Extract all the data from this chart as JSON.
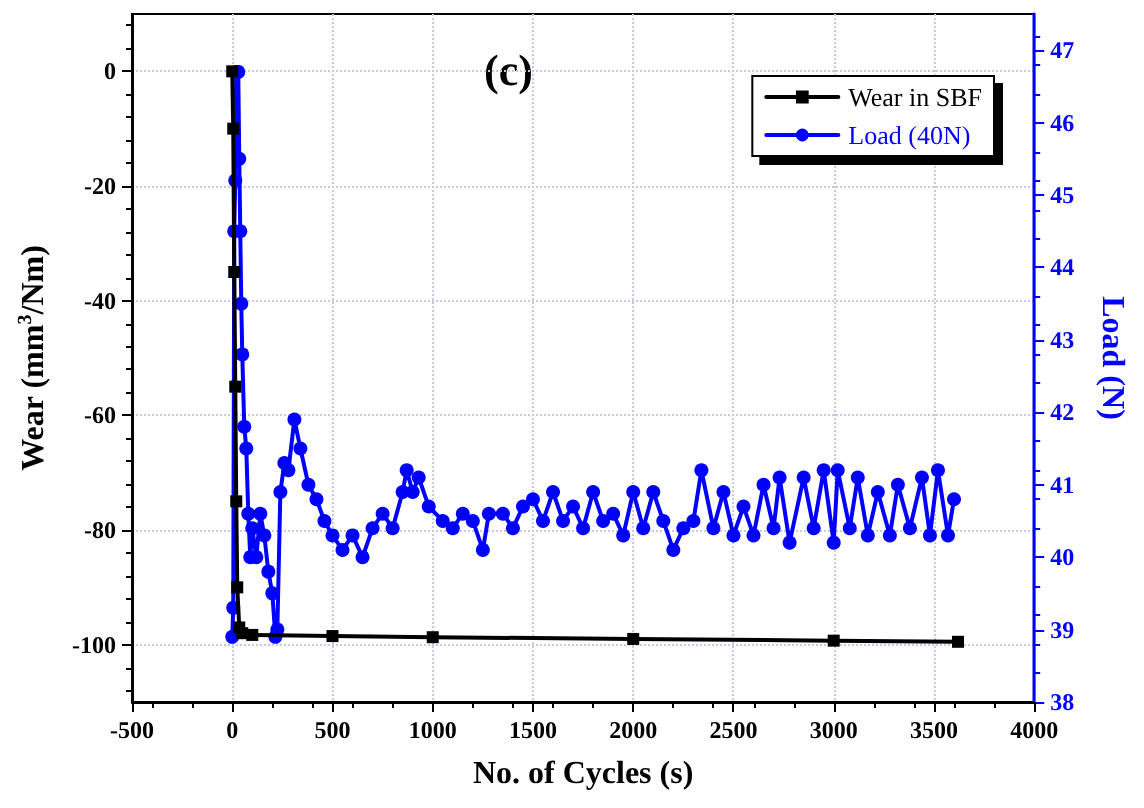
{
  "chart_data": {
    "type": "line",
    "xlabel": "No. of Cycles (s)",
    "ylabel": "Wear (mm$^{3}$/Nm)",
    "y2label": "Load (N)",
    "annotations": [
      "(c)"
    ],
    "xlim": [
      -500,
      4000
    ],
    "xticks": [
      -500,
      0,
      500,
      1000,
      1500,
      2000,
      2500,
      3000,
      3500,
      4000
    ],
    "ylim": [
      -110,
      10
    ],
    "yticks": [
      -100,
      -80,
      -60,
      -40,
      -20,
      0
    ],
    "y2lim": [
      38,
      47.5
    ],
    "y2ticks": [
      38,
      39,
      40,
      41,
      42,
      43,
      44,
      45,
      46,
      47
    ],
    "grid": true,
    "legend": "top right",
    "line_style": "solid",
    "series": [
      {
        "name": "Wear in SBF",
        "color": "#000000",
        "marker": "square",
        "x": [
          0,
          5,
          10,
          15,
          20,
          25,
          35,
          50,
          100,
          500,
          1000,
          2000,
          3000,
          3620
        ],
        "values": [
          0,
          -10,
          -35,
          -55,
          -75,
          -90,
          -97,
          -98,
          -98.3,
          -98.5,
          -98.7,
          -99,
          -99.3,
          -99.5
        ]
      },
      {
        "name": "Load (40N)",
        "color": "#0000ff",
        "marker": "circle",
        "axis": "y2",
        "x": [
          0,
          5,
          10,
          15,
          20,
          30,
          35,
          40,
          45,
          50,
          60,
          70,
          80,
          90,
          100,
          120,
          140,
          160,
          180,
          200,
          215,
          225,
          240,
          260,
          280,
          310,
          340,
          380,
          420,
          460,
          500,
          550,
          600,
          650,
          700,
          750,
          800,
          850,
          870,
          900,
          930,
          980,
          1050,
          1100,
          1150,
          1200,
          1250,
          1280,
          1350,
          1400,
          1450,
          1500,
          1550,
          1600,
          1650,
          1700,
          1750,
          1800,
          1850,
          1900,
          1950,
          2000,
          2050,
          2100,
          2150,
          2200,
          2250,
          2300,
          2340,
          2400,
          2450,
          2500,
          2550,
          2600,
          2650,
          2700,
          2730,
          2780,
          2850,
          2900,
          2950,
          3000,
          3020,
          3080,
          3120,
          3170,
          3220,
          3280,
          3320,
          3380,
          3440,
          3480,
          3520,
          3570,
          3600
        ],
        "values": [
          38.9,
          39.3,
          44.5,
          45.2,
          46.7,
          46.7,
          45.5,
          44.5,
          43.5,
          42.8,
          41.8,
          41.5,
          40.6,
          40.0,
          40.4,
          40.0,
          40.6,
          40.3,
          39.8,
          39.5,
          38.9,
          39.0,
          40.9,
          41.3,
          41.2,
          41.9,
          41.5,
          41.0,
          40.8,
          40.5,
          40.3,
          40.1,
          40.3,
          40.0,
          40.4,
          40.6,
          40.4,
          40.9,
          41.2,
          40.9,
          41.1,
          40.7,
          40.5,
          40.4,
          40.6,
          40.5,
          40.1,
          40.6,
          40.6,
          40.4,
          40.7,
          40.8,
          40.5,
          40.9,
          40.5,
          40.7,
          40.4,
          40.9,
          40.5,
          40.6,
          40.3,
          40.9,
          40.4,
          40.9,
          40.5,
          40.1,
          40.4,
          40.5,
          41.2,
          40.4,
          40.9,
          40.3,
          40.7,
          40.3,
          41.0,
          40.4,
          41.1,
          40.2,
          41.1,
          40.4,
          41.2,
          40.2,
          41.2,
          40.4,
          41.1,
          40.3,
          40.9,
          40.3,
          41.0,
          40.4,
          41.1,
          40.3,
          41.2,
          40.3,
          40.8
        ]
      }
    ]
  }
}
